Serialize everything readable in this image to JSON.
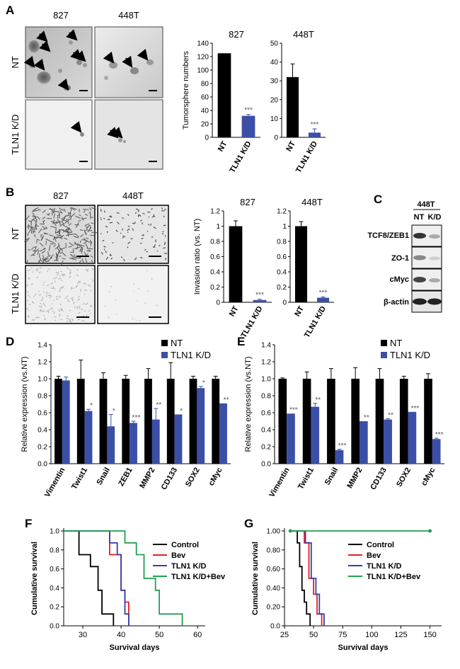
{
  "panel_letters": [
    "A",
    "B",
    "C",
    "D",
    "E",
    "F",
    "G"
  ],
  "panel_a": {
    "col_labels": [
      "827",
      "448T"
    ],
    "row_labels": [
      "NT",
      "TLN1 K/D"
    ]
  },
  "panel_b": {
    "col_labels": [
      "827",
      "448T"
    ],
    "row_labels": [
      "NT",
      "TLN1 K/D"
    ]
  },
  "panel_c": {
    "cell_line": "448T",
    "lanes": [
      "NT",
      "K/D"
    ],
    "bands": [
      "TCF8/ZEB1",
      "ZO-1",
      "cMyc",
      "β-actin"
    ]
  },
  "chart_data": [
    {
      "id": "A-827",
      "type": "bar",
      "title": "827",
      "ylabel": "Tumorsphere numbers",
      "categories": [
        "NT",
        "TLN1 K/D"
      ],
      "values": [
        125,
        32
      ],
      "errors": [
        0,
        2
      ],
      "ylim": [
        0,
        140
      ],
      "yticks": [
        "0",
        "20",
        "40",
        "60",
        "80",
        "100",
        "120",
        "140"
      ],
      "colors": [
        "#000000",
        "#3c4fa6"
      ],
      "annotations": [
        "",
        "***"
      ]
    },
    {
      "id": "A-448T",
      "type": "bar",
      "title": "448T",
      "ylabel": "",
      "categories": [
        "NT",
        "TLN1 K/D"
      ],
      "values": [
        32,
        2.5
      ],
      "errors": [
        7,
        2
      ],
      "ylim": [
        0,
        50
      ],
      "yticks": [
        "0",
        "10",
        "20",
        "30",
        "40",
        "50"
      ],
      "colors": [
        "#000000",
        "#3c4fa6"
      ],
      "annotations": [
        "",
        "***"
      ]
    },
    {
      "id": "B-827",
      "type": "bar",
      "title": "827",
      "ylabel": "Invasion ratio (vs. NT)",
      "categories": [
        "NT",
        "TLN1 K/D"
      ],
      "values": [
        1.0,
        0.03
      ],
      "errors": [
        0.07,
        0.01
      ],
      "ylim": [
        0,
        1.2
      ],
      "yticks": [
        "0",
        "0.2",
        "0.4",
        "0.6",
        "0.8",
        "1",
        "1.2"
      ],
      "colors": [
        "#000000",
        "#3c4fa6"
      ],
      "annotations": [
        "",
        "***"
      ]
    },
    {
      "id": "B-448T",
      "type": "bar",
      "title": "448T",
      "ylabel": "",
      "categories": [
        "NT",
        "TLN1 K/D"
      ],
      "values": [
        1.0,
        0.06
      ],
      "errors": [
        0.06,
        0.01
      ],
      "ylim": [
        0,
        1.2
      ],
      "yticks": [
        "0",
        "0.2",
        "0.4",
        "0.6",
        "0.8",
        "1",
        "1.2"
      ],
      "colors": [
        "#000000",
        "#3c4fa6"
      ],
      "annotations": [
        "",
        "***"
      ]
    },
    {
      "id": "D",
      "type": "bar",
      "ylabel": "Relative expression (vs.NT)",
      "categories": [
        "Vimentin",
        "Twist1",
        "Snail",
        "ZEB1",
        "MMP2",
        "CD133",
        "SOX2",
        "cMyc"
      ],
      "series": [
        {
          "name": "NT",
          "color": "#000000",
          "values": [
            1.0,
            1.0,
            1.0,
            1.0,
            1.0,
            1.0,
            1.0,
            1.0
          ],
          "errors": [
            0.03,
            0.22,
            0.07,
            0.04,
            0.12,
            0.19,
            0.03,
            0.03
          ]
        },
        {
          "name": "TLN1 K/D",
          "color": "#3c4fa6",
          "values": [
            0.98,
            0.62,
            0.44,
            0.48,
            0.52,
            0.58,
            0.89,
            0.71
          ],
          "errors": [
            0.04,
            0.02,
            0.14,
            0.02,
            0.13,
            0.0,
            0.02,
            0.0
          ]
        }
      ],
      "annotations": [
        "",
        "*",
        "*",
        "***",
        "**",
        "*",
        "*",
        "**"
      ],
      "ylim": [
        0,
        1.4
      ],
      "yticks": [
        "0.0",
        "0.2",
        "0.4",
        "0.6",
        "0.8",
        "1.0",
        "1.2",
        "1.4"
      ]
    },
    {
      "id": "E",
      "type": "bar",
      "ylabel": "Relative expression (vs.NT)",
      "categories": [
        "Vimentin",
        "Twist1",
        "Snail",
        "MMP2",
        "CD133",
        "SOX2",
        "cMyc"
      ],
      "series": [
        {
          "name": "NT",
          "color": "#000000",
          "values": [
            1.0,
            1.0,
            1.0,
            1.0,
            1.0,
            1.0,
            1.0
          ],
          "errors": [
            0.01,
            0.08,
            0.12,
            0.13,
            0.12,
            0.03,
            0.06
          ]
        },
        {
          "name": "TLN1 K/D",
          "color": "#3c4fa6",
          "values": [
            0.59,
            0.67,
            0.16,
            0.5,
            0.52,
            0.61,
            0.29
          ],
          "errors": [
            0.0,
            0.04,
            0.01,
            0.0,
            0.01,
            0.0,
            0.01
          ]
        }
      ],
      "annotations": [
        "***",
        "**",
        "***",
        "**",
        "**",
        "***",
        "***"
      ],
      "ylim": [
        0,
        1.4
      ],
      "yticks": [
        "0.0",
        "0.2",
        "0.4",
        "0.6",
        "0.8",
        "1.0",
        "1.2",
        "1.4"
      ]
    },
    {
      "id": "F",
      "type": "line",
      "xlabel": "Survival days",
      "ylabel": "Cumulative survival",
      "xlim": [
        25,
        62
      ],
      "ylim": [
        0,
        1.0
      ],
      "xticks": [
        "30",
        "40",
        "50",
        "60"
      ],
      "xtick_values": [
        30,
        40,
        50,
        60
      ],
      "yticks": [
        "0.0",
        "0.2",
        "0.4",
        "0.6",
        "0.8",
        "1.0"
      ],
      "series": [
        {
          "name": "Control",
          "color": "#000000",
          "x": [
            25,
            29,
            29,
            32,
            32,
            34,
            34,
            35,
            35,
            38,
            38
          ],
          "y": [
            1.0,
            1.0,
            0.75,
            0.75,
            0.625,
            0.625,
            0.375,
            0.375,
            0.125,
            0.125,
            0.0
          ]
        },
        {
          "name": "Bev",
          "color": "#e02020",
          "x": [
            25,
            37,
            37,
            40,
            40,
            41,
            41,
            42,
            42
          ],
          "y": [
            1.0,
            1.0,
            0.75,
            0.75,
            0.375,
            0.375,
            0.25,
            0.25,
            0.0
          ]
        },
        {
          "name": "TLN1 K/D",
          "color": "#3340b0",
          "x": [
            25,
            37,
            37,
            39,
            39,
            40,
            40,
            41,
            41,
            42,
            42
          ],
          "y": [
            1.0,
            1.0,
            0.875,
            0.875,
            0.75,
            0.75,
            0.375,
            0.375,
            0.125,
            0.125,
            0.0
          ]
        },
        {
          "name": "TLN1 K/D+Bev",
          "color": "#20a050",
          "x": [
            25,
            41,
            41,
            44,
            44,
            46,
            46,
            49,
            49,
            50,
            50,
            56,
            56
          ],
          "y": [
            1.0,
            1.0,
            0.875,
            0.875,
            0.75,
            0.75,
            0.5,
            0.5,
            0.375,
            0.375,
            0.125,
            0.125,
            0.0
          ]
        }
      ]
    },
    {
      "id": "G",
      "type": "line",
      "xlabel": "Survival days",
      "ylabel": "Cumulative survival",
      "xlim": [
        25,
        160
      ],
      "ylim": [
        0,
        1.0
      ],
      "xticks": [
        "25",
        "50",
        "75",
        "100",
        "125",
        "150"
      ],
      "xtick_values": [
        25,
        50,
        75,
        100,
        125,
        150
      ],
      "yticks": [
        "0.0",
        "0.20",
        "0.40",
        "0.60",
        "0.80",
        "1.00"
      ],
      "series": [
        {
          "name": "Control",
          "color": "#000000",
          "x": [
            30,
            36,
            36,
            38,
            38,
            40,
            40,
            42,
            42,
            44,
            44,
            47,
            47
          ],
          "y": [
            1.0,
            1.0,
            0.875,
            0.875,
            0.625,
            0.625,
            0.375,
            0.375,
            0.25,
            0.25,
            0.125,
            0.125,
            0.0
          ]
        },
        {
          "name": "Bev",
          "color": "#e02020",
          "x": [
            30,
            42,
            42,
            46,
            46,
            50,
            50,
            53,
            53,
            57,
            57
          ],
          "y": [
            1.0,
            1.0,
            0.875,
            0.875,
            0.5,
            0.5,
            0.333,
            0.333,
            0.125,
            0.125,
            0.0
          ]
        },
        {
          "name": "TLN1 K/D",
          "color": "#3340b0",
          "x": [
            30,
            43,
            43,
            48,
            48,
            52,
            52,
            55,
            55,
            59,
            59
          ],
          "y": [
            1.0,
            1.0,
            0.875,
            0.875,
            0.5,
            0.5,
            0.333,
            0.333,
            0.125,
            0.125,
            0.0
          ]
        },
        {
          "name": "TLN1 K/D+Bev",
          "color": "#20a050",
          "x": [
            30,
            150
          ],
          "y": [
            1.0,
            1.0
          ],
          "markers": true
        }
      ]
    }
  ]
}
